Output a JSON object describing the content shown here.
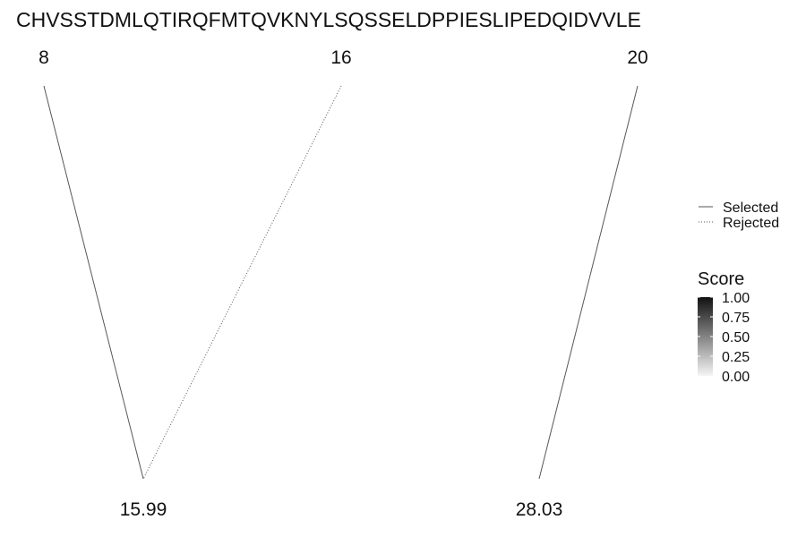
{
  "sequence": "CHVSSTDMLQTIRQFMTQVKNYLSQSSELDPPIESLIPEDQIDVVLE",
  "chart_data": {
    "type": "diagram",
    "top_labels": [
      "8",
      "16",
      "20"
    ],
    "bottom_labels": [
      "15.99",
      "28.03"
    ],
    "links": [
      {
        "from": "8",
        "to": "15.99",
        "status": "Selected",
        "score": 1.0
      },
      {
        "from": "16",
        "to": "15.99",
        "status": "Rejected",
        "score": 1.0
      },
      {
        "from": "20",
        "to": "28.03",
        "status": "Selected",
        "score": 1.0
      }
    ],
    "legend": {
      "linetype": [
        "Selected",
        "Rejected"
      ],
      "score_title": "Score",
      "score_ticks": [
        "1.00",
        "0.75",
        "0.50",
        "0.25",
        "0.00"
      ],
      "score_range": [
        0,
        1
      ],
      "gradient_colors": [
        "#f5f5f5",
        "#111111"
      ]
    }
  }
}
